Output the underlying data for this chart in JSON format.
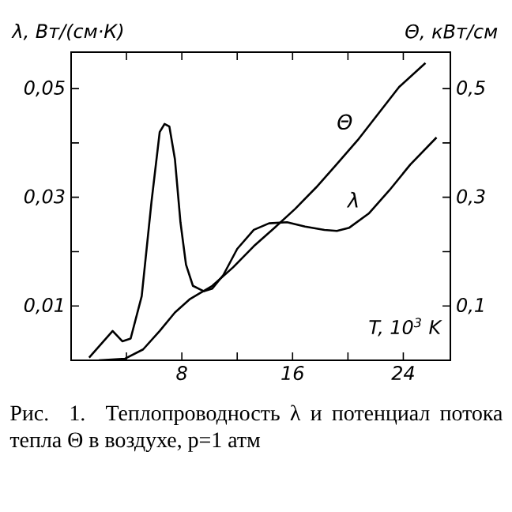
{
  "chart_data": {
    "type": "line",
    "xlabel": "T, 10$^{3}$ K",
    "ylabel": "λ, Вт/(см·К)",
    "y2label": "Θ, кВт/см",
    "xlim": [
      0,
      27.4
    ],
    "ylim": [
      0,
      0.0567
    ],
    "y2lim": [
      0,
      0.567
    ],
    "xticks": [
      {
        "value": 4,
        "label": null
      },
      8,
      {
        "value": 12,
        "label": null
      },
      16,
      {
        "value": 20,
        "label": null
      },
      24
    ],
    "yticks": [
      {
        "value": 0.01,
        "label": "0,01"
      },
      {
        "value": 0.02,
        "label": null
      },
      {
        "value": 0.03,
        "label": "0,03"
      },
      {
        "value": 0.04,
        "label": null
      },
      {
        "value": 0.05,
        "label": "0,05"
      }
    ],
    "y2ticks": [
      {
        "value": 0.1,
        "label": "0,1"
      },
      {
        "value": 0.2,
        "label": null
      },
      {
        "value": 0.3,
        "label": "0,3"
      },
      {
        "value": 0.4,
        "label": null
      },
      {
        "value": 0.5,
        "label": "0,5"
      }
    ],
    "series": [
      {
        "name": "λ",
        "color": "#000000",
        "x": [
          1.3,
          3.0,
          3.7,
          4.3,
          5.1,
          5.8,
          6.4,
          6.75,
          7.1,
          7.5,
          7.9,
          8.3,
          8.8,
          9.6,
          10.2,
          11.0,
          12.0,
          13.2,
          14.3,
          15.6,
          16.9,
          18.3,
          19.2,
          20.1,
          21.5,
          23.0,
          24.5,
          26.4
        ],
        "values": [
          0.0005,
          0.0054,
          0.0035,
          0.004,
          0.0118,
          0.029,
          0.042,
          0.0435,
          0.043,
          0.037,
          0.0254,
          0.0176,
          0.0137,
          0.0127,
          0.0132,
          0.0157,
          0.0205,
          0.024,
          0.0252,
          0.0254,
          0.0246,
          0.024,
          0.0238,
          0.0244,
          0.027,
          0.0313,
          0.036,
          0.041
        ]
      },
      {
        "name": "Θ",
        "color": "#000000",
        "axis": "y2",
        "x": [
          2.0,
          3.9,
          5.2,
          6.4,
          7.5,
          8.6,
          10.2,
          11.7,
          13.2,
          14.7,
          16.2,
          17.7,
          19.2,
          20.7,
          22.2,
          23.7,
          25.6
        ],
        "values": [
          0.0,
          0.003,
          0.02,
          0.054,
          0.088,
          0.113,
          0.137,
          0.171,
          0.21,
          0.244,
          0.279,
          0.318,
          0.361,
          0.405,
          0.454,
          0.503,
          0.547
        ]
      }
    ],
    "annotations": [
      "Рис. 1.  Теплопроводность λ и потенциал потока тепла Θ в воздухе, p=1 атм"
    ]
  }
}
